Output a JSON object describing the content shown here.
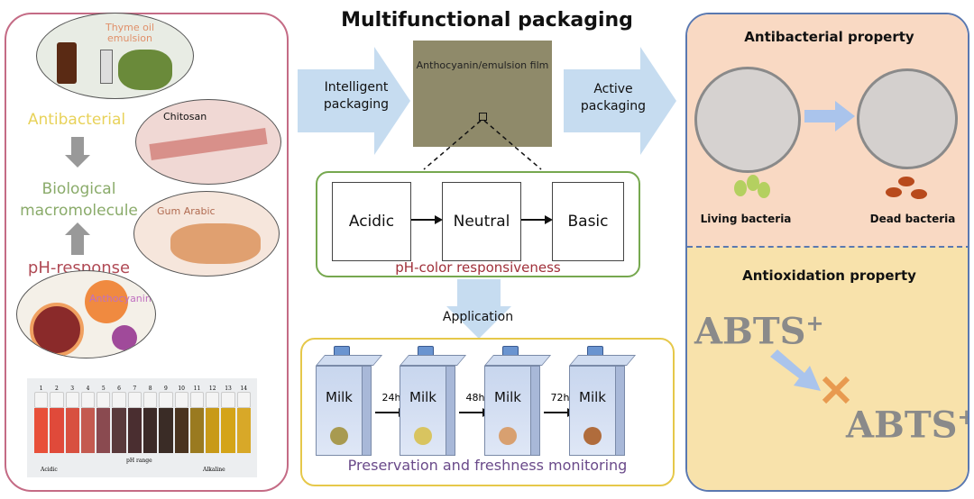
{
  "title": "Multifunctional packaging",
  "left": {
    "thyme_label": "Thyme oil emulsion",
    "antibacterial": "Antibacterial",
    "chitosan": "Chitosan",
    "biological": "Biological macromolecule",
    "gum": "Gum Arabic",
    "ph_response": "pH-response",
    "anthocyanin": "Anthocyanin",
    "ph_strip": {
      "numbers": [
        "1",
        "2",
        "3",
        "4",
        "5",
        "6",
        "7",
        "8",
        "9",
        "10",
        "11",
        "12",
        "13",
        "14"
      ],
      "colors": [
        "#e8503a",
        "#e04a3a",
        "#d85040",
        "#c45a50",
        "#8a4a50",
        "#5a3a3c",
        "#4a2e30",
        "#3c2a28",
        "#3a2c26",
        "#4a3420",
        "#9a7a20",
        "#c89a18",
        "#d4a418",
        "#d8a828"
      ],
      "range_label": "pH range",
      "acidic": "Acidic",
      "alkaline": "Alkaline"
    }
  },
  "center": {
    "intelligent": "Intelligent packaging",
    "active": "Active packaging",
    "film": "Anthocyanin/emulsion film",
    "states": [
      {
        "label": "Acidic",
        "color": "#a8785e"
      },
      {
        "label": "Neutral",
        "color": "#8e8c6a"
      },
      {
        "label": "Basic",
        "color": "#a19a58"
      }
    ],
    "ph_color": "pH-color responsiveness",
    "application": "Application",
    "milk": [
      {
        "label": "Milk",
        "dot": "#a89a50"
      },
      {
        "label": "Milk",
        "dot": "#d8c460"
      },
      {
        "label": "Milk",
        "dot": "#d8a070"
      },
      {
        "label": "Milk",
        "dot": "#b06c3c"
      }
    ],
    "times": [
      "24h",
      "48h",
      "72h"
    ],
    "preservation": "Preservation and freshness monitoring"
  },
  "right": {
    "antibacterial": "Antibacterial property",
    "living": "Living bacteria",
    "dead": "Dead bacteria",
    "antioxidation": "Antioxidation property",
    "abts1": "ABTS",
    "abts2": "ABTS",
    "plus": "+"
  }
}
